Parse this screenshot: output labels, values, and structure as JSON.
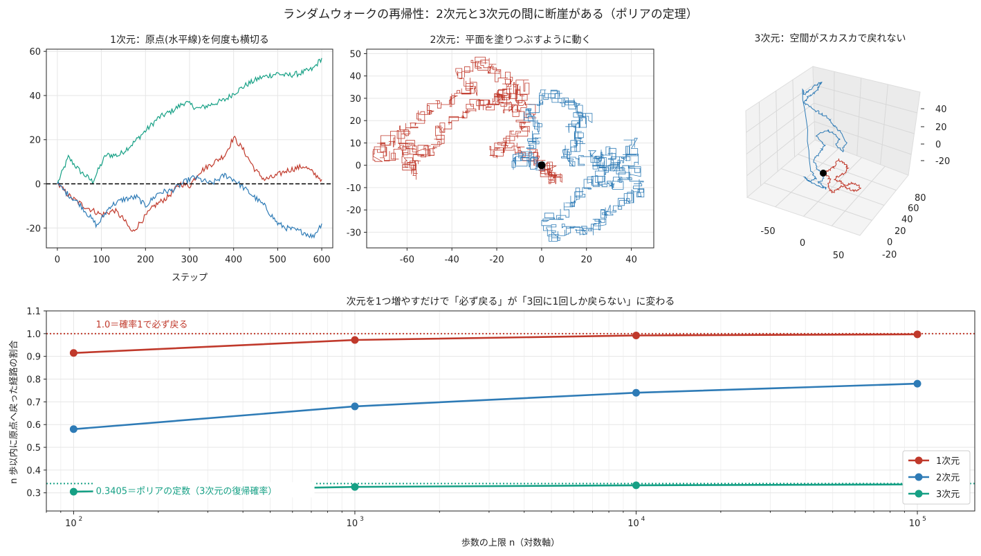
{
  "suptitle": "ランダムウォークの再帰性：2次元と3次元の間に断崖がある（ポリアの定理）",
  "colors": {
    "d1": "#c0392b",
    "d2": "#2e7bb6",
    "d3": "#16a085"
  },
  "chart_data": [
    {
      "type": "line",
      "title": "1次元：原点(水平線)を何度も横切る",
      "xlabel": "ステップ",
      "ylabel": "",
      "xlim": [
        -25,
        625
      ],
      "ylim": [
        -29,
        61
      ],
      "xticks": [
        0,
        100,
        200,
        300,
        400,
        500,
        600
      ],
      "yticks": [
        -20,
        0,
        20,
        40,
        60
      ],
      "xtick_labels": [
        "0",
        "100",
        "200",
        "300",
        "400",
        "500",
        "600"
      ],
      "ytick_labels": [
        "-20",
        "0",
        "20",
        "40",
        "60"
      ],
      "reference_line": {
        "y": 0,
        "style": "dashed",
        "color": "#000000"
      },
      "series": [
        {
          "color": "#16a085",
          "keypoints": [
            [
              0,
              0
            ],
            [
              25,
              12
            ],
            [
              50,
              6
            ],
            [
              80,
              1
            ],
            [
              110,
              13
            ],
            [
              140,
              13
            ],
            [
              170,
              18
            ],
            [
              200,
              24
            ],
            [
              230,
              30
            ],
            [
              260,
              33
            ],
            [
              290,
              37
            ],
            [
              320,
              34
            ],
            [
              350,
              36
            ],
            [
              380,
              38
            ],
            [
              400,
              41
            ],
            [
              430,
              45
            ],
            [
              460,
              48
            ],
            [
              500,
              50
            ],
            [
              520,
              49
            ],
            [
              550,
              50
            ],
            [
              580,
              52
            ],
            [
              600,
              57
            ]
          ]
        },
        {
          "color": "#c0392b",
          "keypoints": [
            [
              0,
              0
            ],
            [
              30,
              -6
            ],
            [
              60,
              -10
            ],
            [
              100,
              -14
            ],
            [
              130,
              -12
            ],
            [
              150,
              -16
            ],
            [
              170,
              -22
            ],
            [
              190,
              -17
            ],
            [
              220,
              -10
            ],
            [
              250,
              -6
            ],
            [
              280,
              0
            ],
            [
              300,
              -1
            ],
            [
              320,
              5
            ],
            [
              350,
              9
            ],
            [
              380,
              13
            ],
            [
              400,
              21
            ],
            [
              420,
              16
            ],
            [
              450,
              6
            ],
            [
              470,
              2
            ],
            [
              490,
              3
            ],
            [
              520,
              6
            ],
            [
              560,
              8
            ],
            [
              600,
              2
            ]
          ]
        },
        {
          "color": "#2e7bb6",
          "keypoints": [
            [
              0,
              0
            ],
            [
              20,
              -4
            ],
            [
              50,
              -9
            ],
            [
              70,
              -14
            ],
            [
              90,
              -19
            ],
            [
              120,
              -10
            ],
            [
              150,
              -7
            ],
            [
              180,
              -6
            ],
            [
              200,
              -10
            ],
            [
              230,
              -4
            ],
            [
              260,
              -3
            ],
            [
              290,
              1
            ],
            [
              310,
              3
            ],
            [
              350,
              0
            ],
            [
              380,
              4
            ],
            [
              400,
              2
            ],
            [
              430,
              -3
            ],
            [
              470,
              -10
            ],
            [
              500,
              -18
            ],
            [
              520,
              -20
            ],
            [
              560,
              -22
            ],
            [
              580,
              -24
            ],
            [
              600,
              -18
            ]
          ]
        }
      ]
    },
    {
      "type": "line",
      "title": "2次元：平面を塗りつぶすように動く",
      "xlabel": "",
      "ylabel": "",
      "xlim": [
        -78,
        50
      ],
      "ylim": [
        -37,
        52
      ],
      "xticks": [
        -60,
        -40,
        -20,
        0,
        20,
        40
      ],
      "yticks": [
        -30,
        -20,
        -10,
        0,
        10,
        20,
        30,
        40,
        50
      ],
      "xtick_labels": [
        "-60",
        "-40",
        "-20",
        "0",
        "20",
        "40"
      ],
      "ytick_labels": [
        "-30",
        "-20",
        "-10",
        "0",
        "10",
        "20",
        "30",
        "40",
        "50"
      ],
      "origin_marker": [
        0,
        0
      ],
      "series": [
        {
          "color": "#c0392b",
          "keypoints": [
            [
              0,
              0
            ],
            [
              3,
              -4
            ],
            [
              8,
              -6
            ],
            [
              4,
              -2
            ],
            [
              -2,
              3
            ],
            [
              -10,
              6
            ],
            [
              -18,
              10
            ],
            [
              -22,
              4
            ],
            [
              -14,
              12
            ],
            [
              -6,
              16
            ],
            [
              -12,
              24
            ],
            [
              -18,
              30
            ],
            [
              -15,
              38
            ],
            [
              -22,
              44
            ],
            [
              -28,
              46
            ],
            [
              -36,
              40
            ],
            [
              -30,
              34
            ],
            [
              -38,
              30
            ],
            [
              -48,
              26
            ],
            [
              -56,
              20
            ],
            [
              -62,
              14
            ],
            [
              -70,
              10
            ],
            [
              -73,
              4
            ],
            [
              -64,
              6
            ],
            [
              -58,
              10
            ],
            [
              -60,
              2
            ],
            [
              -58,
              -4
            ],
            [
              -54,
              6
            ],
            [
              -48,
              8
            ],
            [
              -44,
              16
            ],
            [
              -36,
              22
            ],
            [
              -30,
              28
            ],
            [
              -24,
              26
            ],
            [
              -20,
              30
            ],
            [
              -14,
              32
            ],
            [
              -8,
              36
            ],
            [
              -10,
              28
            ],
            [
              -4,
              24
            ]
          ]
        },
        {
          "color": "#2e7bb6",
          "keypoints": [
            [
              0,
              0
            ],
            [
              -6,
              2
            ],
            [
              -12,
              0
            ],
            [
              -6,
              8
            ],
            [
              -2,
              14
            ],
            [
              -6,
              22
            ],
            [
              -2,
              28
            ],
            [
              4,
              32
            ],
            [
              10,
              28
            ],
            [
              16,
              26
            ],
            [
              20,
              20
            ],
            [
              12,
              16
            ],
            [
              18,
              10
            ],
            [
              10,
              6
            ],
            [
              14,
              2
            ],
            [
              22,
              4
            ],
            [
              30,
              0
            ],
            [
              36,
              2
            ],
            [
              40,
              10
            ],
            [
              42,
              -4
            ],
            [
              44,
              -12
            ],
            [
              38,
              -16
            ],
            [
              30,
              -20
            ],
            [
              26,
              -26
            ],
            [
              20,
              -30
            ],
            [
              12,
              -28
            ],
            [
              6,
              -32
            ],
            [
              2,
              -26
            ],
            [
              10,
              -20
            ],
            [
              16,
              -14
            ],
            [
              22,
              -8
            ],
            [
              28,
              -4
            ],
            [
              24,
              2
            ],
            [
              30,
              6
            ],
            [
              34,
              0
            ],
            [
              38,
              -4
            ],
            [
              32,
              -10
            ],
            [
              26,
              -6
            ]
          ]
        }
      ]
    },
    {
      "type": "line",
      "title": "3次元：空間がスカスカで戻れない",
      "axes_3d": true,
      "x_tick_labels": [
        "-50",
        "0",
        "50"
      ],
      "y_tick_labels": [
        "-20",
        "0",
        "20",
        "40",
        "60",
        "80"
      ],
      "z_tick_labels": [
        "-20",
        "0",
        "20",
        "40"
      ],
      "origin_marker": [
        0,
        0,
        0
      ],
      "series": [
        {
          "color": "#2e7bb6",
          "keypoints": [
            [
              1190,
              250
            ],
            [
              1183,
              245
            ],
            [
              1175,
              232
            ],
            [
              1185,
              222
            ],
            [
              1192,
              210
            ],
            [
              1180,
              195
            ],
            [
              1195,
              188
            ],
            [
              1205,
              192
            ],
            [
              1213,
              200
            ],
            [
              1208,
              210
            ],
            [
              1218,
              218
            ],
            [
              1223,
              205
            ],
            [
              1214,
              190
            ],
            [
              1204,
              180
            ],
            [
              1196,
              170
            ],
            [
              1186,
              164
            ],
            [
              1174,
              156
            ],
            [
              1163,
              148
            ],
            [
              1168,
              140
            ],
            [
              1178,
              134
            ],
            [
              1183,
              126
            ],
            [
              1188,
              118
            ],
            [
              1180,
              122
            ],
            [
              1172,
              128
            ],
            [
              1168,
              132
            ],
            [
              1163,
              136
            ],
            [
              1160,
              130
            ],
            [
              1172,
              246
            ],
            [
              1180,
              258
            ],
            [
              1170,
              262
            ],
            [
              1163,
              256
            ],
            [
              1176,
              266
            ],
            [
              1187,
              270
            ],
            [
              1195,
              272
            ],
            [
              1183,
              264
            ],
            [
              1191,
              258
            ],
            [
              1186,
              252
            ]
          ]
        },
        {
          "color": "#c0392b",
          "keypoints": [
            [
              1190,
              250
            ],
            [
              1198,
              246
            ],
            [
              1206,
              240
            ],
            [
              1212,
              230
            ],
            [
              1220,
              236
            ],
            [
              1226,
              242
            ],
            [
              1221,
              250
            ],
            [
              1212,
              254
            ],
            [
              1206,
              260
            ],
            [
              1215,
              262
            ],
            [
              1223,
              268
            ],
            [
              1230,
              264
            ],
            [
              1238,
              266
            ],
            [
              1245,
              272
            ],
            [
              1235,
              276
            ],
            [
              1226,
              272
            ],
            [
              1217,
              268
            ],
            [
              1210,
              274
            ],
            [
              1203,
              278
            ],
            [
              1196,
              270
            ],
            [
              1200,
              260
            ],
            [
              1195,
              254
            ],
            [
              1190,
              250
            ]
          ]
        }
      ]
    },
    {
      "type": "line",
      "title": "次元を1つ増やすだけで「必ず戻る」が「3回に1回しか戻らない」に変わる",
      "xlabel": "歩数の上限 n（対数軸）",
      "ylabel": "n 歩以内に原点へ戻った経路の割合",
      "x_scale": "log",
      "xlim": [
        80,
        160000
      ],
      "ylim": [
        0.22,
        1.1
      ],
      "x": [
        100,
        1000,
        10000,
        100000
      ],
      "xtick_labels": [
        "10",
        "10",
        "10",
        "10"
      ],
      "xtick_exponents": [
        "2",
        "3",
        "4",
        "5"
      ],
      "yticks": [
        0.3,
        0.4,
        0.5,
        0.6,
        0.7,
        0.8,
        0.9,
        1.0,
        1.1
      ],
      "ytick_labels": [
        "0.3",
        "0.4",
        "0.5",
        "0.6",
        "0.7",
        "0.8",
        "0.9",
        "1.0",
        "1.1"
      ],
      "series": [
        {
          "name": "1次元",
          "color": "#c0392b",
          "values": [
            0.915,
            0.972,
            0.992,
            0.997
          ]
        },
        {
          "name": "2次元",
          "color": "#2e7bb6",
          "values": [
            0.58,
            0.68,
            0.74,
            0.78
          ]
        },
        {
          "name": "3次元",
          "color": "#16a085",
          "values": [
            0.305,
            0.326,
            0.333,
            0.337
          ]
        }
      ],
      "reference_lines": [
        {
          "y": 1.0,
          "color": "#c0392b",
          "style": "dotted",
          "label": "1.0＝確率1で必ず戻る"
        },
        {
          "y": 0.3405,
          "color": "#16a085",
          "style": "dotted",
          "label": "0.3405＝ポリアの定数（3次元の復帰確率）"
        }
      ],
      "legend": {
        "position": "lower-right"
      }
    }
  ]
}
